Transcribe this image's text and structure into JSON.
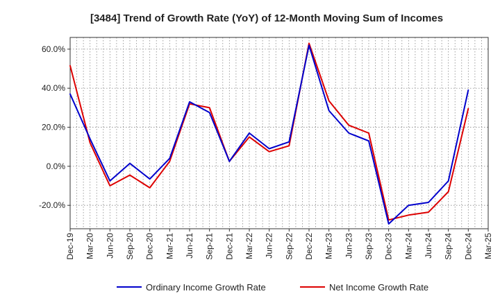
{
  "chart_data": {
    "type": "line",
    "title": "[3484]  Trend of Growth Rate (YoY) of 12-Month Moving Sum of Incomes",
    "xlabel": "",
    "ylabel": "",
    "ylim": [
      -32,
      66
    ],
    "yticks": [
      -20,
      0,
      20,
      40,
      60
    ],
    "ytick_labels": [
      "-20.0%",
      "0.0%",
      "20.0%",
      "40.0%",
      "60.0%"
    ],
    "grid": true,
    "x": [
      "Dec-19",
      "Mar-20",
      "Jun-20",
      "Sep-20",
      "Dec-20",
      "Mar-21",
      "Jun-21",
      "Sep-21",
      "Dec-21",
      "Mar-22",
      "Jun-22",
      "Sep-22",
      "Dec-22",
      "Mar-23",
      "Jun-23",
      "Sep-23",
      "Dec-23",
      "Mar-24",
      "Jun-24",
      "Sep-24",
      "Dec-24",
      "Mar-25"
    ],
    "legend_position": "bottom-center",
    "series": [
      {
        "name": "Ordinary Income Growth Rate",
        "color": "#0000cc",
        "values": [
          37,
          14,
          -7.5,
          1.5,
          -6.5,
          4,
          33,
          27.5,
          2.5,
          17,
          9,
          12.5,
          62,
          28.5,
          17,
          13,
          -29.5,
          -20,
          -18.5,
          -7.5,
          39,
          null
        ]
      },
      {
        "name": "Net Income Growth Rate",
        "color": "#dd0000",
        "values": [
          51.5,
          12,
          -10,
          -4.5,
          -11,
          2.5,
          32,
          30,
          2.5,
          15,
          7.5,
          10.5,
          63,
          33.5,
          21,
          17,
          -27.5,
          -25,
          -23.5,
          -13,
          29.5,
          null
        ]
      }
    ]
  }
}
